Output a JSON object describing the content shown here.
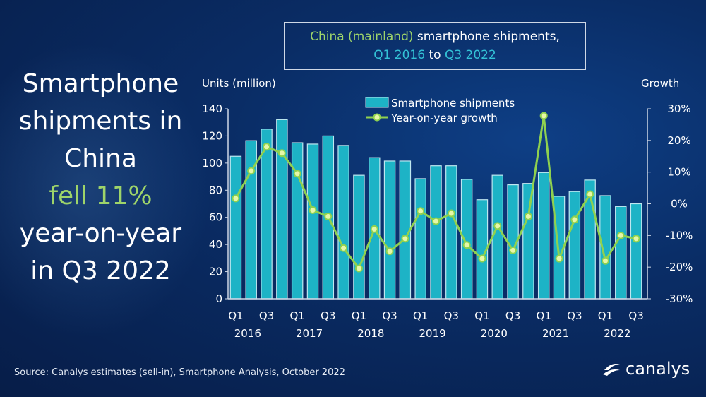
{
  "headline": {
    "line1": "Smartphone",
    "line2": "shipments in",
    "line3": "China",
    "line4": "fell 11%",
    "line5": "year-on-year",
    "line6": "in Q3 2022"
  },
  "source": "Source: Canalys estimates (sell-in), Smartphone Analysis, October 2022",
  "logo": "canalys",
  "colors": {
    "bars": "#1db3c6",
    "line": "#8fd14f",
    "accent": "#9ed46a"
  },
  "chart_data": {
    "type": "bar+line",
    "title_parts": {
      "a": "China (mainland)",
      "b": " smartphone shipments,",
      "c": "Q1 2016",
      "d": " to ",
      "e": "Q3 2022"
    },
    "ylabel": "Units (million)",
    "y2label": "Growth",
    "ylim": [
      0,
      140
    ],
    "y2lim": [
      -30,
      30
    ],
    "yticks": [
      "0",
      "20",
      "40",
      "60",
      "80",
      "100",
      "120",
      "140"
    ],
    "y2ticks": [
      "-30%",
      "-20%",
      "-10%",
      "0%",
      "10%",
      "20%",
      "30%"
    ],
    "x": [
      "Q1 2016",
      "Q2 2016",
      "Q3 2016",
      "Q4 2016",
      "Q1 2017",
      "Q2 2017",
      "Q3 2017",
      "Q4 2017",
      "Q1 2018",
      "Q2 2018",
      "Q3 2018",
      "Q4 2018",
      "Q1 2019",
      "Q2 2019",
      "Q3 2019",
      "Q4 2019",
      "Q1 2020",
      "Q2 2020",
      "Q3 2020",
      "Q4 2020",
      "Q1 2021",
      "Q2 2021",
      "Q3 2021",
      "Q4 2021",
      "Q1 2022",
      "Q2 2022",
      "Q3 2022"
    ],
    "xtick_labels": [
      {
        "q": "Q1",
        "y": "2016"
      },
      {
        "q": "Q3",
        "y": ""
      },
      {
        "q": "Q1",
        "y": "2017"
      },
      {
        "q": "Q3",
        "y": ""
      },
      {
        "q": "Q1",
        "y": "2018"
      },
      {
        "q": "Q3",
        "y": ""
      },
      {
        "q": "Q1",
        "y": "2019"
      },
      {
        "q": "Q3",
        "y": ""
      },
      {
        "q": "Q1",
        "y": "2020"
      },
      {
        "q": "Q3",
        "y": ""
      },
      {
        "q": "Q1",
        "y": "2021"
      },
      {
        "q": "Q3",
        "y": ""
      },
      {
        "q": "Q1",
        "y": "2022"
      },
      {
        "q": "Q3",
        "y": ""
      }
    ],
    "series": [
      {
        "name": "Smartphone shipments",
        "type": "bar",
        "axis": "left",
        "values": [
          105,
          116.5,
          125,
          132,
          115,
          114,
          120,
          113,
          91,
          104,
          101.5,
          101.5,
          88.5,
          98,
          98,
          88,
          73,
          91,
          84,
          85,
          93,
          75.5,
          79,
          87.5,
          76,
          68,
          70
        ]
      },
      {
        "name": "Year-on-year growth",
        "type": "line",
        "axis": "right",
        "values": [
          1.7,
          10.4,
          18,
          16,
          9.5,
          -2,
          -4,
          -14,
          -20.4,
          -8,
          -15,
          -11,
          -2.3,
          -5.5,
          -3,
          -13,
          -17.3,
          -7,
          -14.7,
          -4,
          27.8,
          -17.3,
          -5,
          3,
          -18,
          -10,
          -11
        ]
      }
    ],
    "legend": "top-center",
    "grid": false
  }
}
